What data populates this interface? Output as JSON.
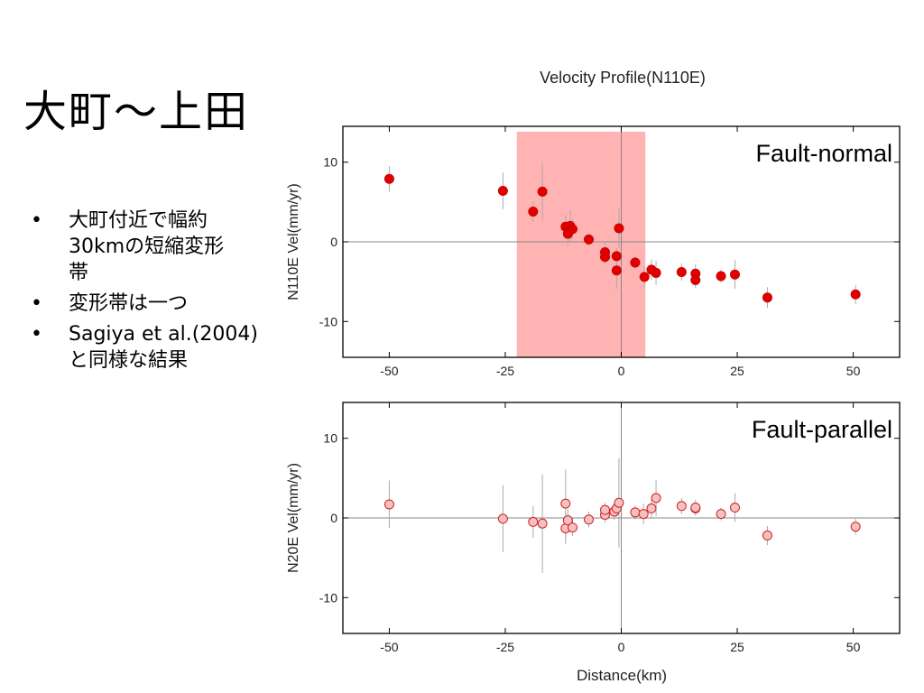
{
  "slide": {
    "title": "大町〜上田",
    "bullets": [
      {
        "marker": "•",
        "text": "大町付近で幅約\n30kmの短縮変形\n帯"
      },
      {
        "marker": "•",
        "text": "変形帯は一つ"
      },
      {
        "marker": "•",
        "text": "Sagiya et al.(2004)\nと同様な結果"
      }
    ]
  },
  "chart_data": {
    "type": "scatter",
    "title": "Velocity Profile(N110E)",
    "xlabel": "Distance(km)",
    "xlim": [
      -60,
      60
    ],
    "xticks": [
      -50,
      -25,
      0,
      25,
      50
    ],
    "panels": [
      {
        "label": "Fault-normal",
        "ylabel": "N110E Vel(mm/yr)",
        "ylim": [
          -14.5,
          14.5
        ],
        "yticks": [
          10,
          0,
          -10
        ],
        "marker_fill": "#e00000",
        "marker_stroke": "#cc0000",
        "highlight_band": {
          "x": [
            -22.5,
            5.2
          ],
          "color": "#ffb3b3"
        },
        "points": [
          {
            "x": -50,
            "y": 7.9,
            "err": 1.6
          },
          {
            "x": -25.5,
            "y": 6.4,
            "err": 2.3
          },
          {
            "x": -17,
            "y": 6.3,
            "err": 3.6
          },
          {
            "x": -19,
            "y": 3.8,
            "err": 1.3
          },
          {
            "x": -12,
            "y": 1.9,
            "err": 1.5
          },
          {
            "x": -11.5,
            "y": 1.0,
            "err": 1.5
          },
          {
            "x": -11,
            "y": 2.0,
            "err": 2.0
          },
          {
            "x": -10.5,
            "y": 1.6,
            "err": 1.2
          },
          {
            "x": -7,
            "y": 0.3,
            "err": 0.8
          },
          {
            "x": -3.5,
            "y": -1.3,
            "err": 1.2
          },
          {
            "x": -3.5,
            "y": -1.9,
            "err": 1.0
          },
          {
            "x": -1,
            "y": -1.8,
            "err": 1.0
          },
          {
            "x": -1,
            "y": -3.6,
            "err": 2.3
          },
          {
            "x": -0.5,
            "y": 1.7,
            "err": 2.5
          },
          {
            "x": 3,
            "y": -2.6,
            "err": 0.8
          },
          {
            "x": 5,
            "y": -4.4,
            "err": 1.3
          },
          {
            "x": 6.5,
            "y": -3.5,
            "err": 1.3
          },
          {
            "x": 7.5,
            "y": -3.9,
            "err": 1.5
          },
          {
            "x": 13,
            "y": -3.8,
            "err": 1.1
          },
          {
            "x": 16,
            "y": -4.0,
            "err": 1.2
          },
          {
            "x": 16,
            "y": -4.8,
            "err": 1.0
          },
          {
            "x": 21.5,
            "y": -4.3,
            "err": 0.8
          },
          {
            "x": 24.5,
            "y": -4.1,
            "err": 1.8
          },
          {
            "x": 31.5,
            "y": -7.0,
            "err": 1.3
          },
          {
            "x": 50.5,
            "y": -6.6,
            "err": 1.2
          }
        ]
      },
      {
        "label": "Fault-parallel",
        "ylabel": "N20E Vel(mm/yr)",
        "ylim": [
          -14.5,
          14.5
        ],
        "yticks": [
          10,
          0,
          -10
        ],
        "marker_fill": "#f6c0c0",
        "marker_stroke": "#cc2222",
        "points": [
          {
            "x": -50,
            "y": 1.7,
            "err": 3.0
          },
          {
            "x": -25.5,
            "y": -0.1,
            "err": 4.2
          },
          {
            "x": -19,
            "y": -0.5,
            "err": 2.0
          },
          {
            "x": -17,
            "y": -0.7,
            "err": 6.2
          },
          {
            "x": -12,
            "y": 1.8,
            "err": 4.3
          },
          {
            "x": -12,
            "y": -1.3,
            "err": 2.0
          },
          {
            "x": -11.5,
            "y": -0.3,
            "err": 1.4
          },
          {
            "x": -10.5,
            "y": -1.2,
            "err": 1.1
          },
          {
            "x": -7,
            "y": -0.2,
            "err": 1.0
          },
          {
            "x": -3.5,
            "y": 0.4,
            "err": 1.0
          },
          {
            "x": -3.5,
            "y": 1.0,
            "err": 0.9
          },
          {
            "x": -1.5,
            "y": 0.8,
            "err": 1.0
          },
          {
            "x": -1,
            "y": 1.2,
            "err": 1.0
          },
          {
            "x": -0.5,
            "y": 1.9,
            "err": 5.6
          },
          {
            "x": 3,
            "y": 0.7,
            "err": 0.9
          },
          {
            "x": 4.8,
            "y": 0.5,
            "err": 1.3
          },
          {
            "x": 6.5,
            "y": 1.2,
            "err": 1.3
          },
          {
            "x": 7.5,
            "y": 2.5,
            "err": 2.3
          },
          {
            "x": 13,
            "y": 1.5,
            "err": 1.0
          },
          {
            "x": 16,
            "y": 1.2,
            "err": 0.8
          },
          {
            "x": 16,
            "y": 1.3,
            "err": 1.0
          },
          {
            "x": 21.5,
            "y": 0.5,
            "err": 0.8
          },
          {
            "x": 24.5,
            "y": 1.3,
            "err": 1.8
          },
          {
            "x": 31.5,
            "y": -2.2,
            "err": 1.2
          },
          {
            "x": 50.5,
            "y": -1.1,
            "err": 1.0
          }
        ]
      }
    ]
  }
}
